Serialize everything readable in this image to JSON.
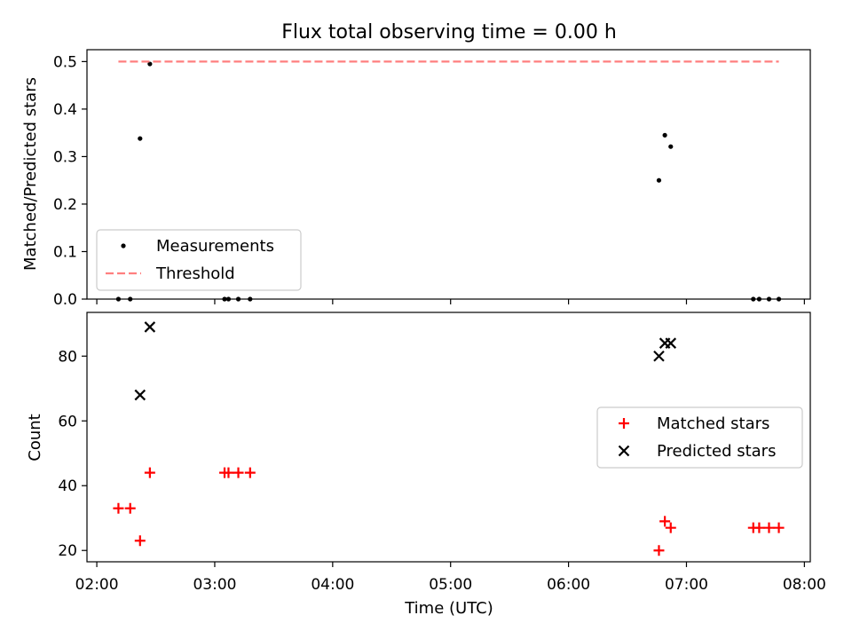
{
  "chart_data": [
    {
      "type": "scatter",
      "title": "Flux total observing time = 0.00 h",
      "xlabel": "",
      "ylabel": "Matched/Predicted stars",
      "xlim": [
        "01:55",
        "08:03"
      ],
      "ylim": [
        0,
        0.525
      ],
      "yticks": [
        0.0,
        0.1,
        0.2,
        0.3,
        0.4,
        0.5
      ],
      "ytick_labels": [
        "0.0",
        "0.1",
        "0.2",
        "0.3",
        "0.4",
        "0.5"
      ],
      "xticks": [
        "02:00",
        "03:00",
        "04:00",
        "05:00",
        "06:00",
        "07:00",
        "08:00"
      ],
      "legend_position": "lower-left",
      "series": [
        {
          "name": "Measurements",
          "marker": "dot",
          "color": "#000000",
          "points": [
            {
              "x": "02:11",
              "y": 0.0
            },
            {
              "x": "02:17",
              "y": 0.0
            },
            {
              "x": "02:22",
              "y": 0.338
            },
            {
              "x": "02:27",
              "y": 0.495
            },
            {
              "x": "03:05",
              "y": 0.0
            },
            {
              "x": "03:07",
              "y": 0.0
            },
            {
              "x": "03:12",
              "y": 0.0
            },
            {
              "x": "03:18",
              "y": 0.0
            },
            {
              "x": "06:46",
              "y": 0.25
            },
            {
              "x": "06:49",
              "y": 0.345
            },
            {
              "x": "06:52",
              "y": 0.321
            },
            {
              "x": "07:34",
              "y": 0.0
            },
            {
              "x": "07:37",
              "y": 0.0
            },
            {
              "x": "07:42",
              "y": 0.0
            },
            {
              "x": "07:47",
              "y": 0.0
            }
          ]
        },
        {
          "name": "Threshold",
          "marker": "dashed-line",
          "color": "#ff7f7f",
          "points": [
            {
              "x": "02:11",
              "y": 0.5
            },
            {
              "x": "07:47",
              "y": 0.5
            }
          ]
        }
      ]
    },
    {
      "type": "scatter",
      "title": "",
      "xlabel": "Time (UTC)",
      "ylabel": "Count",
      "xlim": [
        "01:55",
        "08:03"
      ],
      "ylim": [
        16.5,
        93.5
      ],
      "yticks": [
        20,
        40,
        60,
        80
      ],
      "ytick_labels": [
        "20",
        "40",
        "60",
        "80"
      ],
      "xticks": [
        "02:00",
        "03:00",
        "04:00",
        "05:00",
        "06:00",
        "07:00",
        "08:00"
      ],
      "legend_position": "center-right",
      "series": [
        {
          "name": "Matched stars",
          "marker": "plus",
          "color": "#ff0000",
          "points": [
            {
              "x": "02:11",
              "y": 33
            },
            {
              "x": "02:17",
              "y": 33
            },
            {
              "x": "02:22",
              "y": 23
            },
            {
              "x": "02:27",
              "y": 44
            },
            {
              "x": "03:05",
              "y": 44
            },
            {
              "x": "03:07",
              "y": 44
            },
            {
              "x": "03:12",
              "y": 44
            },
            {
              "x": "03:18",
              "y": 44
            },
            {
              "x": "06:46",
              "y": 20
            },
            {
              "x": "06:49",
              "y": 29
            },
            {
              "x": "06:52",
              "y": 27
            },
            {
              "x": "07:34",
              "y": 27
            },
            {
              "x": "07:37",
              "y": 27
            },
            {
              "x": "07:42",
              "y": 27
            },
            {
              "x": "07:47",
              "y": 27
            }
          ]
        },
        {
          "name": "Predicted stars",
          "marker": "x",
          "color": "#000000",
          "points": [
            {
              "x": "02:22",
              "y": 68
            },
            {
              "x": "02:27",
              "y": 89
            },
            {
              "x": "06:46",
              "y": 80
            },
            {
              "x": "06:49",
              "y": 84
            },
            {
              "x": "06:52",
              "y": 84
            }
          ]
        }
      ]
    }
  ]
}
